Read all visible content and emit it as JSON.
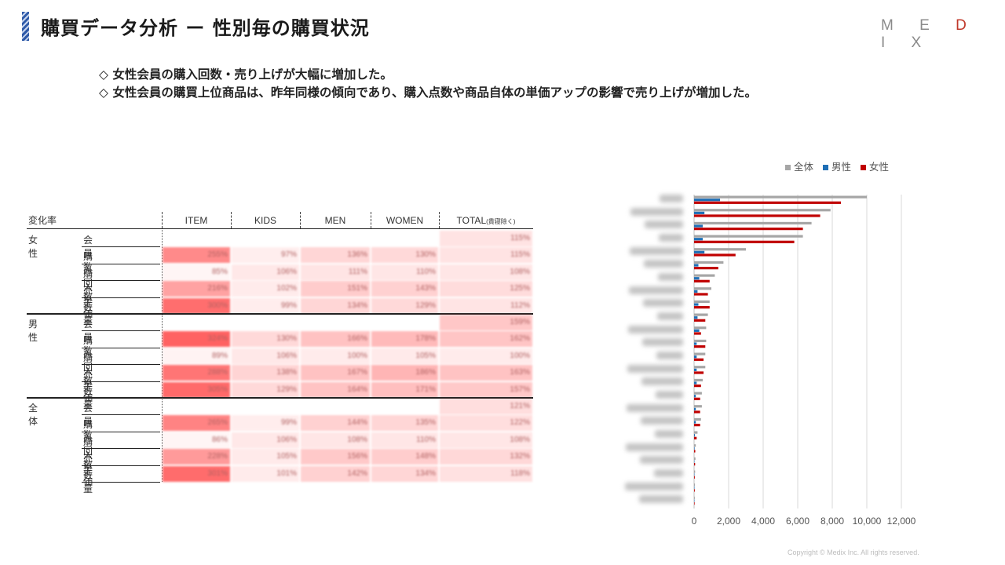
{
  "page": {
    "title": "購買データ分析 ー 性別毎の購買状況",
    "logo": {
      "pre": "M E ",
      "mid": "D",
      "post": " I X"
    },
    "bullets": [
      "◇ 女性会員の購入回数・売り上げが大幅に増加した。",
      "◇ 女性会員の購買上位商品は、昨年同様の傾向であり、購入点数や商品自体の単価アップの影響で売り上げが増加した。"
    ],
    "copyright": "Copyright © Medix Inc. All rights reserved."
  },
  "colors": {
    "total": "#a6a6a6",
    "male": "#1f6fb6",
    "female": "#c00000",
    "heat": "#ff6666"
  },
  "table": {
    "corner": "変化率",
    "columns": [
      "ITEM",
      "KIDS",
      "MEN",
      "WOMEN"
    ],
    "total_col": "TOTAL",
    "total_note": "(貴寝除く)",
    "groups": [
      {
        "name": "女性",
        "rows": [
          {
            "metric": "会員数",
            "values": [
              "",
              "",
              "",
              "",
              "115%"
            ],
            "pct": [
              null,
              null,
              null,
              null,
              115
            ]
          },
          {
            "metric": "購入回数",
            "values": [
              "255%",
              "97%",
              "136%",
              "130%",
              "115%"
            ],
            "pct": [
              255,
              97,
              136,
              130,
              115
            ]
          },
          {
            "metric": "購入単価",
            "values": [
              "85%",
              "106%",
              "111%",
              "110%",
              "108%"
            ],
            "pct": [
              85,
              106,
              111,
              110,
              108
            ]
          },
          {
            "metric": "売上",
            "values": [
              "216%",
              "102%",
              "151%",
              "143%",
              "125%"
            ],
            "pct": [
              216,
              102,
              151,
              143,
              125
            ]
          },
          {
            "metric": "数量",
            "values": [
              "300%",
              "99%",
              "134%",
              "129%",
              "112%"
            ],
            "pct": [
              300,
              99,
              134,
              129,
              112
            ]
          }
        ]
      },
      {
        "name": "男性",
        "rows": [
          {
            "metric": "会員数",
            "values": [
              "",
              "",
              "",
              "",
              "159%"
            ],
            "pct": [
              null,
              null,
              null,
              null,
              159
            ]
          },
          {
            "metric": "購入回数",
            "values": [
              "324%",
              "130%",
              "166%",
              "178%",
              "162%"
            ],
            "pct": [
              324,
              130,
              166,
              178,
              162
            ]
          },
          {
            "metric": "購入単価",
            "values": [
              "89%",
              "106%",
              "100%",
              "105%",
              "100%"
            ],
            "pct": [
              89,
              106,
              100,
              105,
              100
            ]
          },
          {
            "metric": "売上",
            "values": [
              "288%",
              "138%",
              "167%",
              "186%",
              "163%"
            ],
            "pct": [
              288,
              138,
              167,
              186,
              163
            ]
          },
          {
            "metric": "数量",
            "values": [
              "305%",
              "129%",
              "164%",
              "171%",
              "157%"
            ],
            "pct": [
              305,
              129,
              164,
              171,
              157
            ]
          }
        ]
      },
      {
        "name": "全体",
        "rows": [
          {
            "metric": "会員数",
            "values": [
              "",
              "",
              "",
              "",
              "121%"
            ],
            "pct": [
              null,
              null,
              null,
              null,
              121
            ]
          },
          {
            "metric": "購入回数",
            "values": [
              "265%",
              "99%",
              "144%",
              "135%",
              "122%"
            ],
            "pct": [
              265,
              99,
              144,
              135,
              122
            ]
          },
          {
            "metric": "購入単価",
            "values": [
              "86%",
              "106%",
              "108%",
              "110%",
              "108%"
            ],
            "pct": [
              86,
              106,
              108,
              110,
              108
            ]
          },
          {
            "metric": "売上",
            "values": [
              "228%",
              "105%",
              "156%",
              "148%",
              "132%"
            ],
            "pct": [
              228,
              105,
              156,
              148,
              132
            ]
          },
          {
            "metric": "数量",
            "values": [
              "301%",
              "101%",
              "142%",
              "134%",
              "118%"
            ],
            "pct": [
              301,
              101,
              142,
              134,
              118
            ]
          }
        ]
      }
    ]
  },
  "chart_data": {
    "type": "bar",
    "orientation": "horizontal",
    "legend": [
      "全体",
      "男性",
      "女性"
    ],
    "legend_position": "top-right",
    "xlim": [
      0,
      12000
    ],
    "xticks": [
      "0",
      "2,000",
      "4,000",
      "6,000",
      "8,000",
      "10,000",
      "12,000"
    ],
    "grid": true,
    "series": [
      {
        "name": "全体",
        "values": [
          10000,
          7900,
          6800,
          6300,
          3000,
          1700,
          1200,
          1000,
          900,
          800,
          700,
          700,
          650,
          650,
          500,
          450,
          450,
          400,
          200,
          100,
          80,
          60,
          50,
          40
        ]
      },
      {
        "name": "男性",
        "values": [
          1500,
          600,
          500,
          500,
          600,
          250,
          300,
          200,
          250,
          200,
          300,
          150,
          150,
          150,
          150,
          100,
          100,
          100,
          50,
          30,
          20,
          20,
          10,
          10
        ]
      },
      {
        "name": "女性",
        "values": [
          8500,
          7300,
          6300,
          5800,
          2400,
          1400,
          900,
          800,
          900,
          650,
          400,
          650,
          550,
          550,
          400,
          350,
          350,
          350,
          150,
          70,
          60,
          40,
          40,
          30
        ]
      }
    ]
  }
}
